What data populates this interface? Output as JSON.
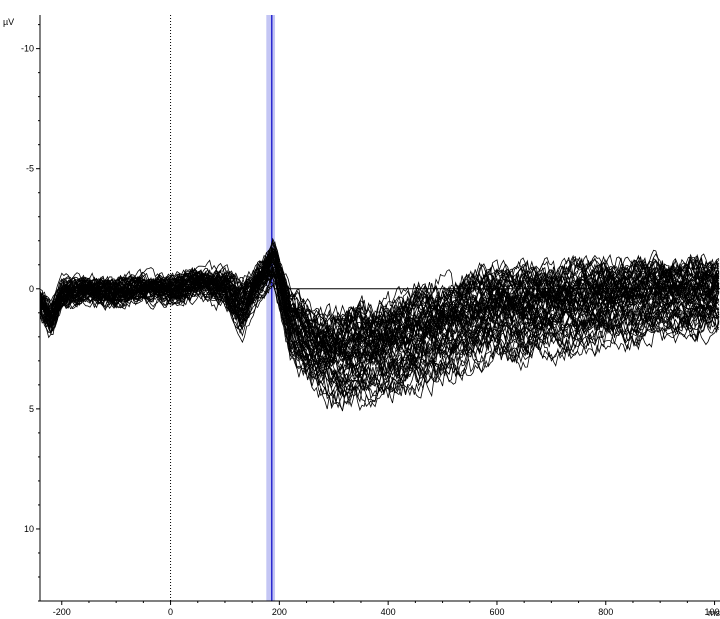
{
  "header": {
    "label": ""
  },
  "chart_data": {
    "type": "line",
    "title": "",
    "xlabel": "ms",
    "ylabel": "µV",
    "y_inverted": true,
    "xlim": [
      -240,
      1010
    ],
    "ylim": [
      -11.4,
      13.0
    ],
    "x_ticks": [
      -200,
      0,
      200,
      400,
      600,
      800,
      1000
    ],
    "y_ticks": [
      -10,
      -5,
      0,
      5,
      10
    ],
    "x_tick_labels": [
      "-200",
      "0",
      "200",
      "400",
      "600",
      "800",
      "1000"
    ],
    "y_tick_labels": [
      "-10",
      "-5",
      "0",
      "5",
      "10"
    ],
    "zero_marker_x": 0,
    "highlight_window": [
      176,
      192
    ],
    "cursor_x": 186,
    "baseline_segment": {
      "x": [
        190,
        1010
      ],
      "y": 0
    },
    "n_traces": 64,
    "grand_average": {
      "x": [
        -240,
        -220,
        -200,
        -150,
        -100,
        -50,
        0,
        50,
        100,
        130,
        150,
        190,
        220,
        260,
        300,
        350,
        400,
        450,
        500,
        600,
        700,
        800,
        900,
        1000
      ],
      "mean": [
        0.6,
        1.3,
        0.3,
        0.1,
        0.2,
        0.0,
        0.1,
        -0.2,
        0.0,
        0.9,
        0.2,
        -1.1,
        1.5,
        2.6,
        3.0,
        2.8,
        2.6,
        2.2,
        1.9,
        1.1,
        1.0,
        0.7,
        0.5,
        0.4
      ],
      "spread": [
        0.4,
        0.4,
        0.3,
        0.3,
        0.3,
        0.3,
        0.3,
        0.4,
        0.5,
        0.9,
        0.6,
        0.7,
        1.1,
        1.4,
        1.6,
        1.8,
        1.8,
        1.8,
        1.8,
        1.7,
        1.6,
        1.5,
        1.4,
        1.3
      ]
    },
    "grid": false,
    "legend": "none",
    "colors": {
      "trace": "#000000",
      "highlight_fill": "#c4c6f4",
      "cursor": "#2a2ad0"
    }
  }
}
